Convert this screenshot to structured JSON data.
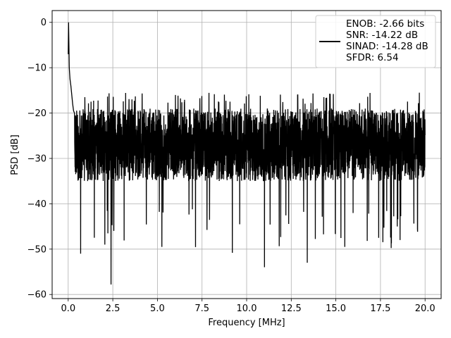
{
  "chart_data": {
    "type": "line",
    "title": "",
    "xlabel": "Frequency [MHz]",
    "ylabel": "PSD [dB]",
    "xlim": [
      -0.9,
      20.9
    ],
    "ylim": [
      -60.9,
      2.6
    ],
    "xticks": [
      0.0,
      2.5,
      5.0,
      7.5,
      10.0,
      12.5,
      15.0,
      17.5,
      20.0
    ],
    "xtick_labels": [
      "0.0",
      "2.5",
      "5.0",
      "7.5",
      "10.0",
      "12.5",
      "15.0",
      "17.5",
      "20.0"
    ],
    "yticks": [
      0,
      -10,
      -20,
      -30,
      -40,
      -50,
      -60
    ],
    "ytick_labels": [
      "0",
      "−10",
      "−20",
      "−30",
      "−40",
      "−50",
      "−60"
    ],
    "grid": true,
    "legend_position": "top-right",
    "series": [
      {
        "color": "#000000",
        "start_points": [
          [
            0.0,
            -7.0
          ],
          [
            0.02,
            0.0
          ],
          [
            0.06,
            -10.0
          ],
          [
            0.1,
            -12.5
          ],
          [
            0.15,
            -14.0
          ],
          [
            0.2,
            -16.0
          ],
          [
            0.25,
            -18.0
          ],
          [
            0.3,
            -19.5
          ],
          [
            0.35,
            -20.0
          ]
        ],
        "noise_floor": {
          "x_range": [
            0.35,
            20.0
          ],
          "typical_min": -38,
          "typical_max": -18,
          "peak_max": -15.5
        },
        "deep_dips": [
          [
            0.7,
            -51.0
          ],
          [
            2.05,
            -49.0
          ],
          [
            2.4,
            -57.8
          ],
          [
            5.25,
            -49.5
          ],
          [
            9.2,
            -50.8
          ],
          [
            11.0,
            -54.0
          ],
          [
            13.4,
            -53.0
          ],
          [
            15.5,
            -49.5
          ],
          [
            17.4,
            -47.5
          ],
          [
            18.6,
            -48.0
          ]
        ]
      }
    ],
    "legend_lines": [
      "ENOB: -2.66 bits",
      "SNR: -14.22 dB",
      "SINAD: -14.28 dB",
      "SFDR: 6.54"
    ]
  }
}
